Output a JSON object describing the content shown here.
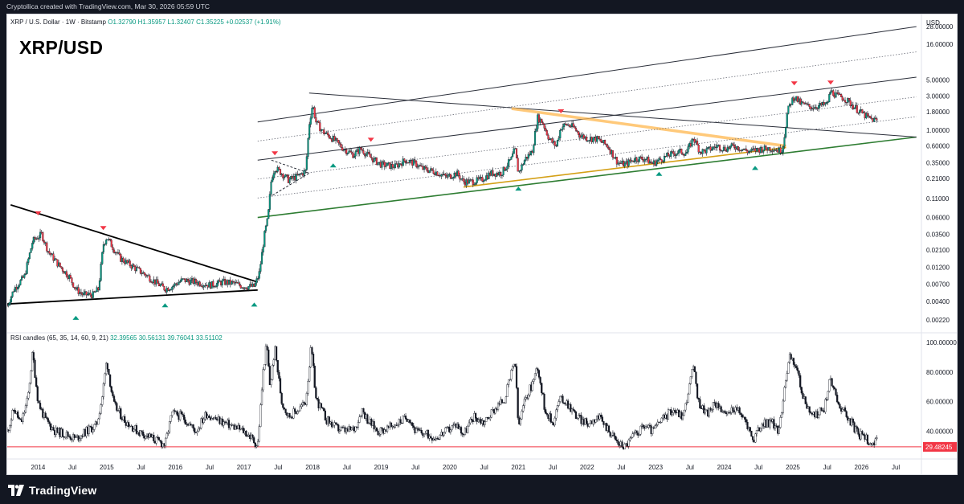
{
  "header": {
    "attribution": "Cryptollica created with TradingView.com, Mar 30, 2026 05:59 UTC"
  },
  "legend": {
    "symbol": "XRP / U.S. Dollar · 1W · Bitstamp",
    "ohlc": "O1.32790 H1.35957 L1.32407 C1.35225 +0.02537 (+1.91%)"
  },
  "title": "XRP/USD",
  "currency": "USD",
  "rsi_legend": {
    "name": "RSI candles (65, 35, 14, 60, 9, 21)",
    "values": [
      "32.39565",
      "30.56131",
      "39.76041",
      "33.51102"
    ]
  },
  "footer": {
    "brand": "TradingView"
  },
  "colors": {
    "background": "#131722",
    "panel": "#ffffff",
    "up": "#089981",
    "down": "#f23645",
    "support": "#2e7d32",
    "orange_band": "#ffb74d",
    "rsi_level": "#f23645"
  },
  "chart_data": [
    {
      "type": "candlestick",
      "scale": "log",
      "ylim": [
        0.0018,
        32
      ],
      "x_ticks": [
        "2014",
        "Jul",
        "2015",
        "Jul",
        "2016",
        "Jul",
        "2017",
        "Jul",
        "2018",
        "Jul",
        "2019",
        "Jul",
        "2020",
        "Jul",
        "2021",
        "Jul",
        "2022",
        "Jul",
        "2023",
        "Jul",
        "2024",
        "Jul",
        "2025",
        "Jul",
        "2026",
        "Jul"
      ],
      "x_tick_times": [
        2014.0,
        2014.5,
        2015.0,
        2015.5,
        2016.0,
        2016.5,
        2017.0,
        2017.5,
        2018.0,
        2018.5,
        2019.0,
        2019.5,
        2020.0,
        2020.5,
        2021.0,
        2021.5,
        2022.0,
        2022.5,
        2023.0,
        2023.5,
        2024.0,
        2024.5,
        2025.0,
        2025.5,
        2026.0,
        2026.5
      ],
      "y_ticks": [
        "28.00000",
        "16.00000",
        "5.00000",
        "3.00000",
        "1.80000",
        "1.00000",
        "0.60000",
        "0.35000",
        "0.21000",
        "0.11000",
        "0.06000",
        "0.03500",
        "0.02100",
        "0.01200",
        "0.00700",
        "0.00400",
        "0.00220"
      ],
      "y_tick_values": [
        28,
        16,
        5,
        3,
        1.8,
        1,
        0.6,
        0.35,
        0.21,
        0.11,
        0.06,
        0.035,
        0.021,
        0.012,
        0.007,
        0.004,
        0.0022
      ],
      "price_path": [
        [
          2013.55,
          0.0035
        ],
        [
          2013.65,
          0.006
        ],
        [
          2013.8,
          0.009
        ],
        [
          2013.92,
          0.028
        ],
        [
          2014.05,
          0.035
        ],
        [
          2014.15,
          0.02
        ],
        [
          2014.3,
          0.013
        ],
        [
          2014.45,
          0.009
        ],
        [
          2014.55,
          0.006
        ],
        [
          2014.65,
          0.005
        ],
        [
          2014.8,
          0.005
        ],
        [
          2014.88,
          0.006
        ],
        [
          2014.95,
          0.025
        ],
        [
          2015.0,
          0.032
        ],
        [
          2015.1,
          0.022
        ],
        [
          2015.2,
          0.016
        ],
        [
          2015.4,
          0.012
        ],
        [
          2015.6,
          0.009
        ],
        [
          2015.75,
          0.007
        ],
        [
          2015.85,
          0.006
        ],
        [
          2015.95,
          0.0065
        ],
        [
          2016.1,
          0.008
        ],
        [
          2016.3,
          0.0075
        ],
        [
          2016.5,
          0.0068
        ],
        [
          2016.7,
          0.0075
        ],
        [
          2016.85,
          0.0072
        ],
        [
          2017.0,
          0.0065
        ],
        [
          2017.15,
          0.0065
        ],
        [
          2017.22,
          0.0095
        ],
        [
          2017.3,
          0.035
        ],
        [
          2017.35,
          0.06
        ],
        [
          2017.4,
          0.21
        ],
        [
          2017.45,
          0.3
        ],
        [
          2017.55,
          0.25
        ],
        [
          2017.65,
          0.2
        ],
        [
          2017.8,
          0.23
        ],
        [
          2017.9,
          0.27
        ],
        [
          2017.95,
          1.2
        ],
        [
          2018.0,
          2.3
        ],
        [
          2018.05,
          1.3
        ],
        [
          2018.15,
          0.95
        ],
        [
          2018.3,
          0.75
        ],
        [
          2018.45,
          0.55
        ],
        [
          2018.6,
          0.45
        ],
        [
          2018.7,
          0.55
        ],
        [
          2018.8,
          0.45
        ],
        [
          2018.9,
          0.38
        ],
        [
          2019.0,
          0.33
        ],
        [
          2019.2,
          0.31
        ],
        [
          2019.35,
          0.38
        ],
        [
          2019.5,
          0.34
        ],
        [
          2019.6,
          0.29
        ],
        [
          2019.8,
          0.26
        ],
        [
          2019.95,
          0.22
        ],
        [
          2020.1,
          0.25
        ],
        [
          2020.2,
          0.19
        ],
        [
          2020.3,
          0.19
        ],
        [
          2020.45,
          0.2
        ],
        [
          2020.6,
          0.25
        ],
        [
          2020.75,
          0.25
        ],
        [
          2020.9,
          0.4
        ],
        [
          2020.95,
          0.55
        ],
        [
          2021.0,
          0.25
        ],
        [
          2021.1,
          0.4
        ],
        [
          2021.2,
          0.5
        ],
        [
          2021.28,
          1.5
        ],
        [
          2021.35,
          1.3
        ],
        [
          2021.45,
          0.75
        ],
        [
          2021.55,
          0.6
        ],
        [
          2021.62,
          1.1
        ],
        [
          2021.7,
          1.2
        ],
        [
          2021.8,
          1.1
        ],
        [
          2021.9,
          0.85
        ],
        [
          2022.0,
          0.77
        ],
        [
          2022.15,
          0.75
        ],
        [
          2022.3,
          0.6
        ],
        [
          2022.45,
          0.35
        ],
        [
          2022.55,
          0.33
        ],
        [
          2022.7,
          0.4
        ],
        [
          2022.85,
          0.4
        ],
        [
          2022.95,
          0.34
        ],
        [
          2023.05,
          0.38
        ],
        [
          2023.2,
          0.45
        ],
        [
          2023.35,
          0.5
        ],
        [
          2023.45,
          0.48
        ],
        [
          2023.55,
          0.78
        ],
        [
          2023.65,
          0.5
        ],
        [
          2023.75,
          0.52
        ],
        [
          2023.9,
          0.6
        ],
        [
          2024.0,
          0.55
        ],
        [
          2024.15,
          0.6
        ],
        [
          2024.25,
          0.55
        ],
        [
          2024.35,
          0.5
        ],
        [
          2024.55,
          0.55
        ],
        [
          2024.7,
          0.56
        ],
        [
          2024.8,
          0.52
        ],
        [
          2024.85,
          0.55
        ],
        [
          2024.88,
          0.9
        ],
        [
          2024.92,
          1.8
        ],
        [
          2024.96,
          2.3
        ],
        [
          2025.02,
          3.0
        ],
        [
          2025.1,
          2.4
        ],
        [
          2025.25,
          2.1
        ],
        [
          2025.4,
          2.2
        ],
        [
          2025.5,
          2.3
        ],
        [
          2025.55,
          3.5
        ],
        [
          2025.65,
          3.0
        ],
        [
          2025.75,
          2.8
        ],
        [
          2025.85,
          2.3
        ],
        [
          2025.95,
          1.9
        ],
        [
          2026.05,
          1.6
        ],
        [
          2026.12,
          1.45
        ],
        [
          2026.24,
          1.35
        ]
      ],
      "highs": [
        [
          2014.0,
          0.058,
          "down"
        ],
        [
          2014.95,
          0.036,
          "down"
        ],
        [
          2017.45,
          0.4,
          "down"
        ],
        [
          2018.85,
          0.62,
          "down"
        ],
        [
          2021.62,
          1.55,
          "down"
        ],
        [
          2025.02,
          3.8,
          "down"
        ],
        [
          2025.55,
          3.9,
          "down"
        ]
      ],
      "lows": [
        [
          2014.55,
          0.0028,
          "up"
        ],
        [
          2015.85,
          0.0042,
          "up"
        ],
        [
          2017.15,
          0.0043,
          "up"
        ],
        [
          2018.3,
          0.38,
          "up"
        ],
        [
          2021.0,
          0.18,
          "up"
        ],
        [
          2023.05,
          0.29,
          "up"
        ],
        [
          2024.45,
          0.35,
          "up"
        ]
      ],
      "lines": [
        {
          "name": "wedge-upper",
          "from": [
            2013.6,
            0.09
          ],
          "to": [
            2017.2,
            0.0075
          ]
        },
        {
          "name": "wedge-lower",
          "from": [
            2013.55,
            0.0037
          ],
          "to": [
            2017.2,
            0.0058
          ]
        },
        {
          "name": "long-support",
          "from": [
            2017.2,
            0.06
          ],
          "to": [
            2026.8,
            0.8
          ]
        },
        {
          "name": "channel-top",
          "from": [
            2017.2,
            1.3
          ],
          "to": [
            2026.8,
            28
          ]
        },
        {
          "name": "channel-mid",
          "from": [
            2017.2,
            0.38
          ],
          "to": [
            2026.8,
            5.5
          ]
        },
        {
          "name": "downtrend",
          "from": [
            2017.95,
            3.3
          ],
          "to": [
            2026.8,
            0.8
          ]
        },
        {
          "name": "orange-upper",
          "from": [
            2020.9,
            2.0
          ],
          "to": [
            2024.9,
            0.6
          ]
        },
        {
          "name": "orange-lower",
          "from": [
            2020.2,
            0.16
          ],
          "to": [
            2024.9,
            0.57
          ]
        }
      ],
      "x_domain": [
        2013.55,
        2026.85
      ]
    },
    {
      "type": "line",
      "name": "RSI",
      "ylim": [
        24,
        100
      ],
      "y_ticks": [
        "100.00000",
        "80.00000",
        "60.00000",
        "40.00000"
      ],
      "y_tick_values": [
        100,
        80,
        60,
        40
      ],
      "current_value": "29.48245",
      "level": 29.48245,
      "points": [
        [
          2013.55,
          40
        ],
        [
          2013.65,
          55
        ],
        [
          2013.75,
          45
        ],
        [
          2013.85,
          62
        ],
        [
          2013.92,
          93
        ],
        [
          2014.0,
          60
        ],
        [
          2014.1,
          48
        ],
        [
          2014.25,
          40
        ],
        [
          2014.4,
          38
        ],
        [
          2014.55,
          35
        ],
        [
          2014.7,
          40
        ],
        [
          2014.85,
          44
        ],
        [
          2014.93,
          62
        ],
        [
          2015.0,
          88
        ],
        [
          2015.1,
          58
        ],
        [
          2015.25,
          48
        ],
        [
          2015.45,
          40
        ],
        [
          2015.6,
          37
        ],
        [
          2015.75,
          33
        ],
        [
          2015.85,
          31
        ],
        [
          2015.95,
          52
        ],
        [
          2016.1,
          50
        ],
        [
          2016.3,
          40
        ],
        [
          2016.45,
          52
        ],
        [
          2016.6,
          48
        ],
        [
          2016.75,
          45
        ],
        [
          2016.9,
          42
        ],
        [
          2017.0,
          40
        ],
        [
          2017.1,
          36
        ],
        [
          2017.2,
          30
        ],
        [
          2017.28,
          80
        ],
        [
          2017.33,
          99
        ],
        [
          2017.38,
          70
        ],
        [
          2017.45,
          96
        ],
        [
          2017.55,
          60
        ],
        [
          2017.65,
          50
        ],
        [
          2017.8,
          55
        ],
        [
          2017.9,
          60
        ],
        [
          2017.98,
          97
        ],
        [
          2018.05,
          62
        ],
        [
          2018.2,
          48
        ],
        [
          2018.35,
          42
        ],
        [
          2018.5,
          40
        ],
        [
          2018.62,
          42
        ],
        [
          2018.72,
          55
        ],
        [
          2018.8,
          48
        ],
        [
          2018.95,
          40
        ],
        [
          2019.1,
          42
        ],
        [
          2019.25,
          46
        ],
        [
          2019.4,
          50
        ],
        [
          2019.5,
          40
        ],
        [
          2019.65,
          38
        ],
        [
          2019.8,
          36
        ],
        [
          2019.95,
          40
        ],
        [
          2020.1,
          45
        ],
        [
          2020.2,
          38
        ],
        [
          2020.35,
          50
        ],
        [
          2020.5,
          46
        ],
        [
          2020.65,
          55
        ],
        [
          2020.8,
          62
        ],
        [
          2020.95,
          88
        ],
        [
          2021.0,
          42
        ],
        [
          2021.1,
          62
        ],
        [
          2021.2,
          72
        ],
        [
          2021.28,
          84
        ],
        [
          2021.38,
          56
        ],
        [
          2021.5,
          45
        ],
        [
          2021.6,
          62
        ],
        [
          2021.7,
          60
        ],
        [
          2021.85,
          50
        ],
        [
          2022.0,
          45
        ],
        [
          2022.15,
          50
        ],
        [
          2022.3,
          42
        ],
        [
          2022.45,
          32
        ],
        [
          2022.55,
          30
        ],
        [
          2022.7,
          38
        ],
        [
          2022.85,
          44
        ],
        [
          2022.95,
          40
        ],
        [
          2023.1,
          48
        ],
        [
          2023.25,
          55
        ],
        [
          2023.4,
          50
        ],
        [
          2023.55,
          84
        ],
        [
          2023.62,
          60
        ],
        [
          2023.75,
          52
        ],
        [
          2023.9,
          60
        ],
        [
          2024.0,
          50
        ],
        [
          2024.15,
          56
        ],
        [
          2024.3,
          48
        ],
        [
          2024.42,
          34
        ],
        [
          2024.55,
          45
        ],
        [
          2024.7,
          46
        ],
        [
          2024.8,
          40
        ],
        [
          2024.88,
          72
        ],
        [
          2024.95,
          90
        ],
        [
          2025.05,
          84
        ],
        [
          2025.15,
          62
        ],
        [
          2025.3,
          50
        ],
        [
          2025.45,
          55
        ],
        [
          2025.55,
          76
        ],
        [
          2025.65,
          60
        ],
        [
          2025.8,
          50
        ],
        [
          2025.95,
          38
        ],
        [
          2026.05,
          36
        ],
        [
          2026.15,
          32
        ],
        [
          2026.24,
          33
        ]
      ]
    }
  ]
}
